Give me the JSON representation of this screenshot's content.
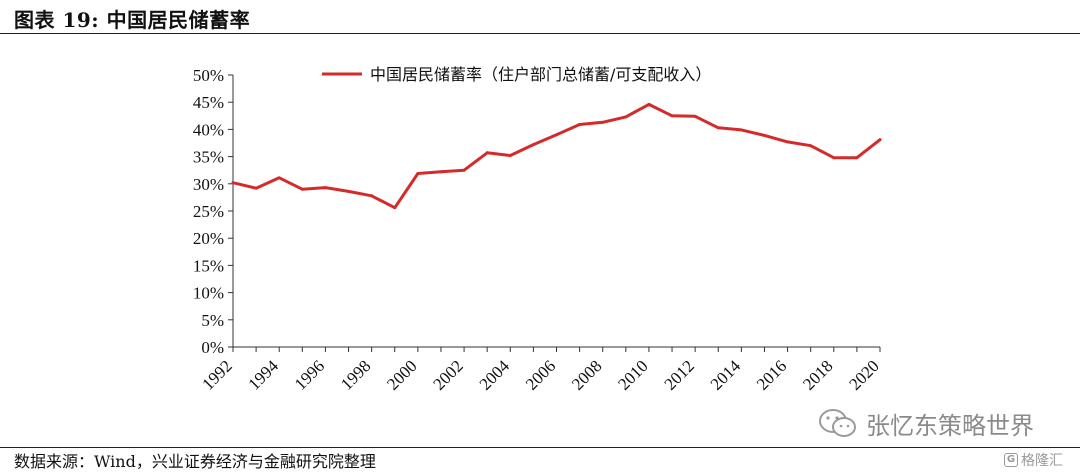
{
  "figure_title": "图表 19:  中国居民储蓄率",
  "source_note": "数据来源：Wind，兴业证券经济与金融研究院整理",
  "watermark": {
    "icon": "wechat-icon",
    "text": "张忆东策略世界"
  },
  "brand": {
    "icon": "gelonghui-logo-icon",
    "text": "格隆汇"
  },
  "colors": {
    "series": "#d42a2a",
    "axis": "#333333",
    "text": "#111111"
  },
  "chart_data": {
    "type": "line",
    "title": "",
    "xlabel": "",
    "ylabel": "",
    "ylim": [
      0,
      50
    ],
    "grid": false,
    "legend_position": "top",
    "y_ticks": [
      "0%",
      "5%",
      "10%",
      "15%",
      "20%",
      "25%",
      "30%",
      "35%",
      "40%",
      "45%",
      "50%"
    ],
    "x_ticks": [
      "1992",
      "1994",
      "1996",
      "1998",
      "2000",
      "2002",
      "2004",
      "2006",
      "2008",
      "2010",
      "2012",
      "2014",
      "2016",
      "2018",
      "2020"
    ],
    "x": [
      1992,
      1993,
      1994,
      1995,
      1996,
      1997,
      1998,
      1999,
      2000,
      2001,
      2002,
      2003,
      2004,
      2005,
      2006,
      2007,
      2008,
      2009,
      2010,
      2011,
      2012,
      2013,
      2014,
      2015,
      2016,
      2017,
      2018,
      2019,
      2020
    ],
    "series": [
      {
        "name": "中国居民储蓄率（住户部门总储蓄/可支配收入）",
        "values": [
          30.2,
          29.2,
          31.1,
          29.0,
          29.3,
          28.6,
          27.8,
          25.6,
          31.9,
          32.2,
          32.5,
          35.7,
          35.2,
          37.2,
          39.0,
          40.9,
          41.3,
          42.3,
          44.6,
          42.5,
          42.4,
          40.3,
          39.9,
          38.9,
          37.7,
          37.0,
          34.8,
          34.8,
          38.1
        ]
      }
    ]
  }
}
